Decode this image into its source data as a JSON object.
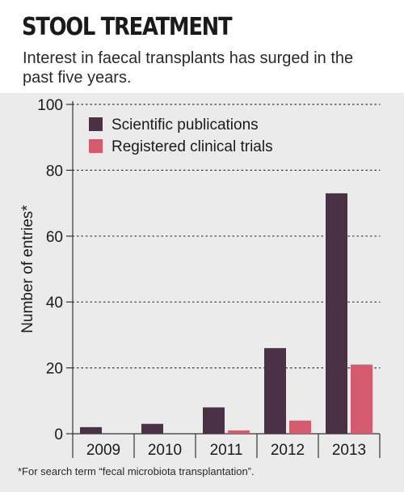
{
  "header": {
    "title": "STOOL TREATMENT",
    "subtitle": "Interest in faecal transplants has surged in the past five years."
  },
  "footnote": "*For search term “fecal microbiota transplantation”.",
  "colors": {
    "background": "#ebebeb",
    "publications": "#4a3145",
    "trials": "#d45b6e"
  },
  "chart_data": {
    "type": "bar",
    "categories": [
      "2009",
      "2010",
      "2011",
      "2012",
      "2013"
    ],
    "series": [
      {
        "name": "Scientific publications",
        "values": [
          2,
          3,
          8,
          26,
          73
        ]
      },
      {
        "name": "Registered clinical trials",
        "values": [
          0,
          0,
          1,
          4,
          21
        ]
      }
    ],
    "ylabel": "Number of entries*",
    "ylim": [
      0,
      100
    ],
    "yticks": [
      0,
      20,
      40,
      60,
      80,
      100
    ],
    "grid": "dotted horizontal",
    "legend": "top-left"
  }
}
